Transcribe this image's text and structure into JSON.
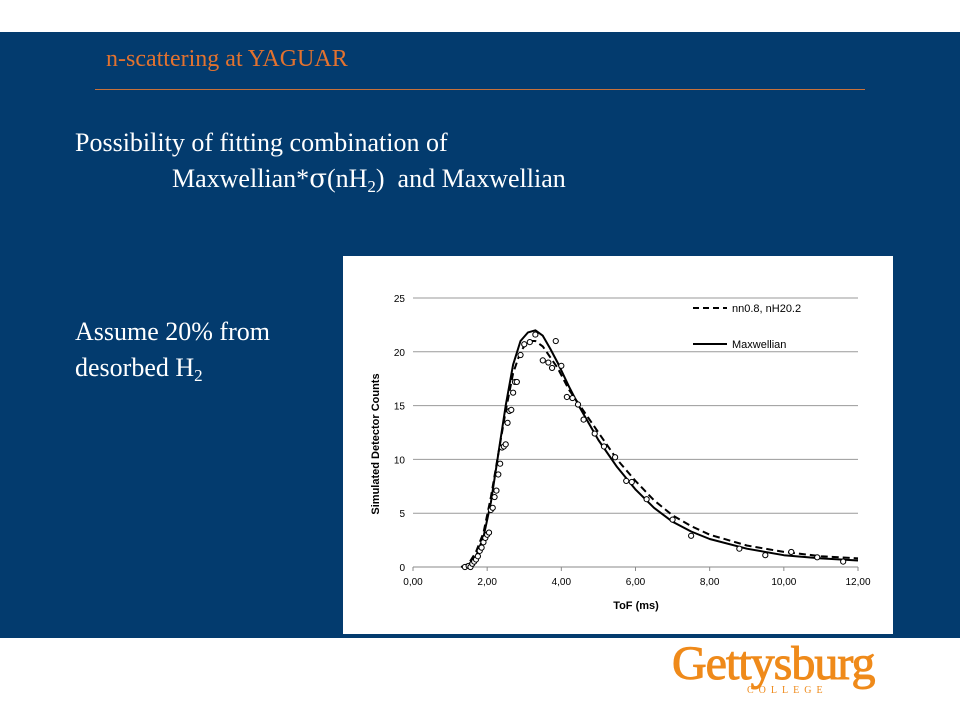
{
  "header": {
    "title": "n-scattering at YAGUAR"
  },
  "body": {
    "line1": "Possibility of fitting combination of",
    "line2_a": "Maxwellian*",
    "line2_sigma": "σ",
    "line2_b": "(nH",
    "line2_sub": "2",
    "line2_c": ")",
    "line2_d": "and Maxwellian",
    "assume_line1": "Assume 20% from",
    "assume_line2": "desorbed H",
    "assume_sub": "2"
  },
  "colors": {
    "panel": "#033b6e",
    "heading": "#e2722f",
    "logo": "#ef8a1a"
  },
  "chart_data": {
    "type": "line",
    "xlabel": "ToF (ms)",
    "ylabel": "Simulated Detector Counts",
    "xlim": [
      0,
      12
    ],
    "ylim": [
      0,
      25
    ],
    "x_ticks": [
      "0,00",
      "2,00",
      "4,00",
      "6,00",
      "8,00",
      "10,00",
      "12,00"
    ],
    "y_ticks": [
      "0",
      "5",
      "10",
      "15",
      "20",
      "25"
    ],
    "grid": "horizontal",
    "legend_position": "top-right",
    "series": [
      {
        "name": "nn0.8, nH20.2",
        "style": "dashed",
        "x": [
          1.3,
          1.5,
          1.7,
          1.9,
          2.1,
          2.3,
          2.5,
          2.7,
          2.9,
          3.1,
          3.3,
          3.5,
          3.7,
          3.9,
          4.2,
          4.5,
          5.0,
          5.5,
          6.0,
          6.5,
          7.0,
          7.5,
          8.0,
          9.0,
          10.0,
          11.0,
          12.0
        ],
        "y": [
          0,
          0.3,
          1.4,
          3.2,
          6.5,
          10.5,
          14.5,
          18.0,
          20.0,
          21.0,
          21.0,
          20.5,
          19.5,
          18.5,
          16.5,
          15.0,
          12.5,
          10.0,
          8.0,
          6.2,
          4.8,
          3.8,
          3.0,
          2.0,
          1.4,
          1.0,
          0.8
        ]
      },
      {
        "name": "Maxwellian",
        "style": "solid",
        "x": [
          1.3,
          1.5,
          1.7,
          1.9,
          2.1,
          2.3,
          2.5,
          2.7,
          2.9,
          3.1,
          3.3,
          3.5,
          3.7,
          3.9,
          4.2,
          4.5,
          5.0,
          5.5,
          6.0,
          6.5,
          7.0,
          7.5,
          8.0,
          9.0,
          10.0,
          11.0,
          12.0
        ],
        "y": [
          0,
          0.2,
          1.0,
          2.8,
          6.0,
          10.5,
          15.0,
          18.8,
          21.0,
          21.8,
          22.0,
          21.5,
          20.3,
          19.0,
          16.8,
          14.8,
          11.8,
          9.3,
          7.2,
          5.5,
          4.2,
          3.3,
          2.6,
          1.7,
          1.1,
          0.8,
          0.6
        ]
      },
      {
        "name": "",
        "style": "markers",
        "x": [
          1.4,
          1.5,
          1.55,
          1.6,
          1.65,
          1.7,
          1.75,
          1.8,
          1.85,
          1.9,
          1.95,
          2.0,
          2.05,
          2.1,
          2.15,
          2.2,
          2.25,
          2.3,
          2.35,
          2.4,
          2.45,
          2.5,
          2.55,
          2.6,
          2.65,
          2.7,
          2.75,
          2.8,
          2.9,
          3.0,
          3.15,
          3.3,
          3.5,
          3.65,
          3.75,
          3.85,
          4.0,
          4.15,
          4.3,
          4.45,
          4.6,
          4.9,
          5.15,
          5.45,
          5.75,
          5.9,
          6.3,
          7.0,
          7.5,
          8.8,
          9.5,
          10.2,
          10.9,
          11.6
        ],
        "y": [
          0,
          0.1,
          0,
          0.3,
          0.5,
          0.7,
          1.0,
          1.5,
          1.8,
          2.3,
          2.7,
          3.0,
          3.2,
          5.3,
          5.5,
          6.5,
          7.1,
          8.6,
          9.6,
          11.1,
          11.2,
          11.4,
          13.4,
          14.5,
          14.6,
          16.2,
          17.2,
          17.2,
          19.7,
          20.7,
          20.9,
          21.6,
          19.2,
          19.0,
          18.5,
          21.0,
          18.7,
          15.8,
          15.7,
          15.1,
          13.7,
          12.4,
          11.2,
          10.2,
          8.0,
          7.9,
          6.3,
          4.4,
          2.9,
          1.7,
          1.1,
          1.4,
          0.9,
          0.5
        ]
      }
    ]
  }
}
